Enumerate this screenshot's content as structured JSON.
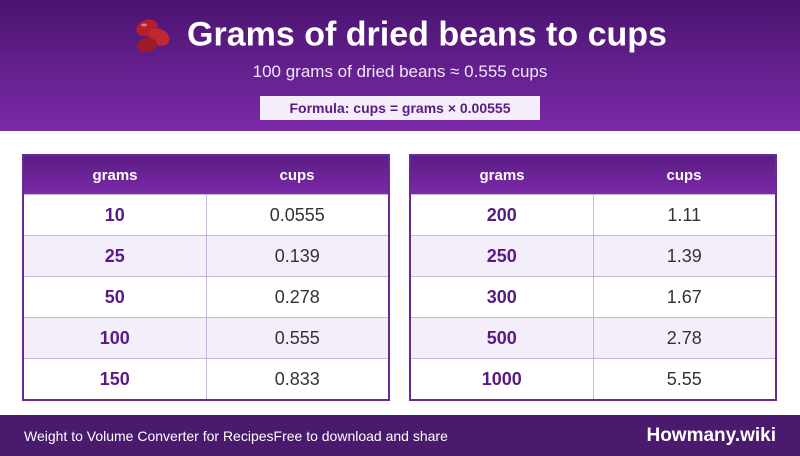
{
  "header": {
    "title": "Grams of dried beans to cups",
    "subtitle": "100 grams of dried beans ≈ 0.555 cups",
    "formula": "Formula: cups = grams × 0.00555"
  },
  "tables": [
    {
      "columns": [
        "grams",
        "cups"
      ],
      "rows": [
        [
          10,
          0.0555
        ],
        [
          25,
          0.139
        ],
        [
          50,
          0.278
        ],
        [
          100,
          0.555
        ],
        [
          150,
          0.833
        ]
      ]
    },
    {
      "columns": [
        "grams",
        "cups"
      ],
      "rows": [
        [
          200,
          1.11
        ],
        [
          250,
          1.39
        ],
        [
          300,
          1.67
        ],
        [
          500,
          2.78
        ],
        [
          1000,
          5.55
        ]
      ]
    }
  ],
  "footer": {
    "left": "Weight to Volume Converter for Recipes",
    "middle": "Free to download and share",
    "brand": "Howmany.wiki"
  }
}
